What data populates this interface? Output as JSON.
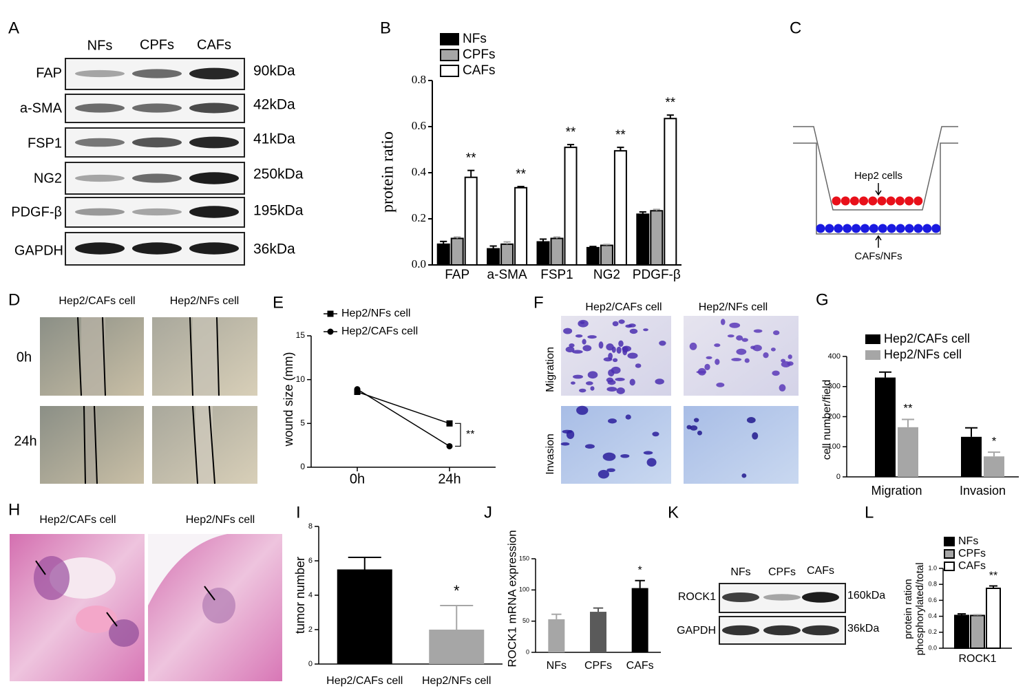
{
  "panel_labels": [
    "A",
    "B",
    "C",
    "D",
    "E",
    "F",
    "G",
    "H",
    "I",
    "J",
    "K",
    "L"
  ],
  "blot_a": {
    "lanes": [
      "NFs",
      "CPFs",
      "CAFs"
    ],
    "proteins": [
      "FAP",
      "a-SMA",
      "FSP1",
      "NG2",
      "PDGF-β",
      "GAPDH"
    ],
    "sizes": [
      "90kDa",
      "42kDa",
      "41kDa",
      "250kDa",
      "195kDa",
      "36kDa"
    ]
  },
  "diagram_c": {
    "top_label": "Hep2 cells",
    "bottom_label": "CAFs/NFs"
  },
  "images_d": {
    "columns": [
      "Hep2/CAFs cell",
      "Hep2/NFs cell"
    ],
    "rows": [
      "0h",
      "24h"
    ]
  },
  "images_f": {
    "columns": [
      "Hep2/CAFs cell",
      "Hep2/NFs cell"
    ],
    "rows": [
      "Migration",
      "Invasion"
    ]
  },
  "images_h": {
    "columns": [
      "Hep2/CAFs cell",
      "Hep2/NFs cell"
    ]
  },
  "blot_k": {
    "lanes": [
      "NFs",
      "CPFs",
      "CAFs"
    ],
    "proteins": [
      "ROCK1",
      "GAPDH"
    ],
    "sizes": [
      "160kDa",
      "36kDa"
    ]
  },
  "chart_data": [
    {
      "type": "bar",
      "ylabel": "protein ratio",
      "categories": [
        "FAP",
        "a-SMA",
        "FSP1",
        "NG2",
        "PDGF-β"
      ],
      "edgecolor": "#000000",
      "series": [
        {
          "name": "NFs",
          "color": "#000000",
          "values": [
            0.09,
            0.07,
            0.1,
            0.075,
            0.22
          ],
          "errors": [
            0.012,
            0.012,
            0.012,
            0.005,
            0.01
          ]
        },
        {
          "name": "CPFs",
          "color": "#a6a6a6",
          "values": [
            0.115,
            0.09,
            0.115,
            0.085,
            0.235
          ],
          "errors": [
            0.006,
            0.01,
            0.006,
            0.004,
            0.006
          ]
        },
        {
          "name": "CAFs",
          "color": "#ffffff",
          "values": [
            0.38,
            0.335,
            0.51,
            0.495,
            0.635
          ],
          "errors": [
            0.03,
            0.005,
            0.012,
            0.015,
            0.015
          ],
          "annotations": [
            "**",
            "**",
            "**",
            "**",
            "**"
          ]
        }
      ],
      "ylim": [
        0,
        0.8
      ],
      "yticks": [
        {
          "value": 0,
          "label": "0.0"
        },
        0.2,
        0.4,
        0.6,
        0.8
      ]
    },
    {
      "type": "line",
      "ylabel": "wound size (mm)",
      "categories": [
        "0h",
        "24h"
      ],
      "series": [
        {
          "name": "Hep2/NFs cell",
          "color": "#000000",
          "marker": "square",
          "values": [
            8.6,
            5.0
          ]
        },
        {
          "name": "Hep2/CAFs cell",
          "color": "#000000",
          "marker": "circle",
          "values": [
            8.9,
            2.4
          ]
        }
      ],
      "annotation": "**",
      "ylim": [
        0,
        15
      ],
      "yticks": [
        0,
        5,
        10,
        15
      ]
    },
    {
      "type": "bar",
      "ylabel": "cell number/field",
      "categories": [
        "Migration",
        "Invasion"
      ],
      "series": [
        {
          "name": "Hep2/CAFs cell",
          "color": "#000000",
          "values": [
            330,
            133
          ],
          "errors": [
            18,
            30
          ]
        },
        {
          "name": "Hep2/NFs cell",
          "color": "#a6a6a6",
          "values": [
            165,
            68
          ],
          "errors": [
            26,
            14
          ],
          "annotations": [
            "**",
            "*"
          ]
        }
      ],
      "ylim": [
        0,
        400
      ],
      "yticks": [
        0,
        100,
        200,
        300,
        400
      ]
    },
    {
      "type": "bar",
      "ylabel": "tumor number",
      "categories": [
        "Hep2/CAFs cell",
        "Hep2/NFs cell"
      ],
      "values": [
        5.5,
        2.0
      ],
      "errors": [
        0.7,
        1.4
      ],
      "colors": [
        "#000000",
        "#a6a6a6"
      ],
      "annotations": [
        null,
        "*"
      ],
      "ylim": [
        0,
        8
      ],
      "yticks": [
        0,
        2,
        4,
        6,
        8
      ]
    },
    {
      "type": "bar",
      "ylabel": "ROCK1 mRNA expression",
      "categories": [
        "NFs",
        "CPFs",
        "CAFs"
      ],
      "values": [
        53,
        65,
        103
      ],
      "errors": [
        8,
        6,
        12
      ],
      "colors": [
        "#a6a6a6",
        "#5a5a5a",
        "#000000"
      ],
      "annotations": [
        null,
        null,
        "*"
      ],
      "ylim": [
        0,
        150
      ],
      "yticks": [
        0,
        50,
        100,
        150
      ]
    },
    {
      "type": "bar",
      "ylabel": [
        "protein ration",
        "phosphorylated/total"
      ],
      "categories": [
        "ROCK1"
      ],
      "edgecolor": "#000000",
      "series": [
        {
          "name": "NFs",
          "color": "#000000",
          "values": [
            0.41
          ],
          "errors": [
            0.02
          ]
        },
        {
          "name": "CPFs",
          "color": "#a6a6a6",
          "values": [
            0.41
          ],
          "errors": [
            0.01
          ]
        },
        {
          "name": "CAFs",
          "color": "#ffffff",
          "values": [
            0.75
          ],
          "errors": [
            0.03
          ],
          "annotations": [
            "**"
          ]
        }
      ],
      "ylim": [
        0,
        1.0
      ],
      "yticks": [
        {
          "value": 0,
          "label": "0.0"
        },
        0.2,
        0.4,
        0.6,
        0.8,
        {
          "value": 1.0,
          "label": "1.0"
        }
      ]
    }
  ]
}
